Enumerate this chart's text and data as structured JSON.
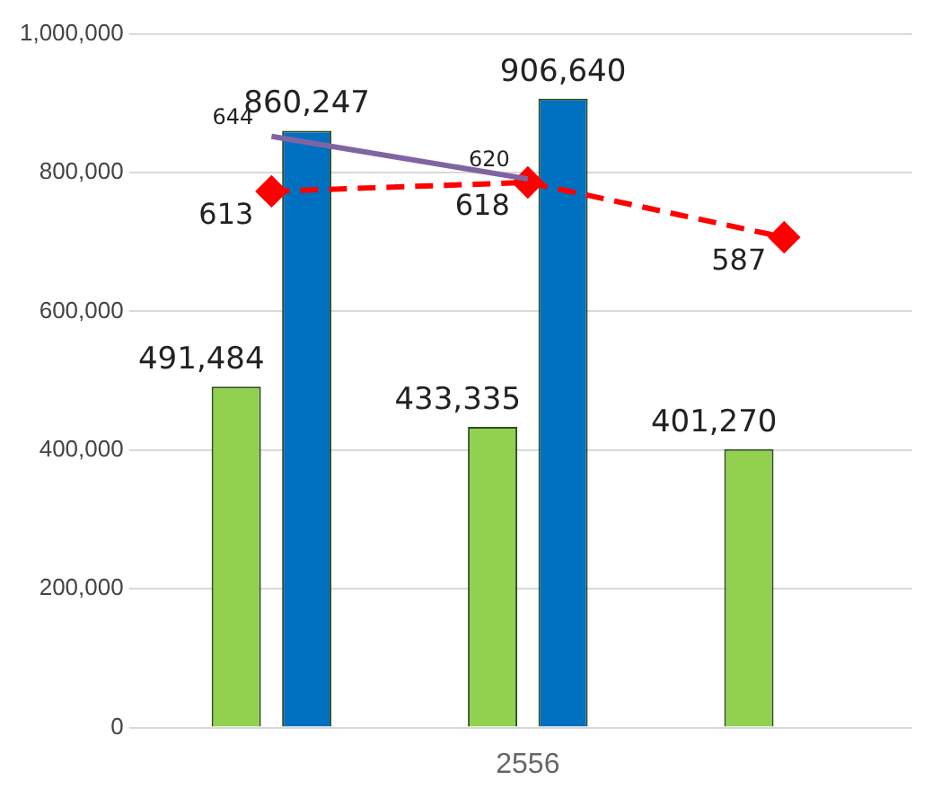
{
  "chart_data": {
    "type": "bar",
    "categories": [
      null,
      "2556",
      null
    ],
    "series": [
      {
        "color": "#92d050",
        "values": [
          491484,
          433335,
          401270
        ],
        "value_labels": [
          "491,484",
          "433,335",
          "401,270"
        ]
      },
      {
        "color": "#0070c0",
        "values": [
          860247,
          906640,
          null
        ],
        "value_labels": [
          "860,247",
          "906,640",
          null
        ]
      },
      {
        "type": "line",
        "axis": "y2",
        "color": "#8064a2",
        "marker": "none",
        "line_style": "solid",
        "values": [
          644,
          620,
          null
        ],
        "value_labels": [
          "644",
          "620",
          null
        ]
      },
      {
        "type": "line",
        "axis": "y2",
        "color": "#ff0000",
        "marker": "diamond",
        "line_style": "dashed",
        "values": [
          613,
          618,
          587
        ],
        "value_labels": [
          "613",
          "618",
          "587"
        ]
      }
    ],
    "ylim": [
      0,
      1000000
    ],
    "yticks": [
      0,
      {
        "value": 200000,
        "label": "200,000"
      },
      {
        "value": 400000,
        "label": "400,000"
      },
      {
        "value": 600000,
        "label": "600,000"
      },
      {
        "value": 800000,
        "label": "800,000"
      },
      {
        "value": 1000000,
        "label": "1,000,000"
      }
    ],
    "y2lim": [
      310,
      702
    ],
    "grid": "y",
    "legend": false
  }
}
